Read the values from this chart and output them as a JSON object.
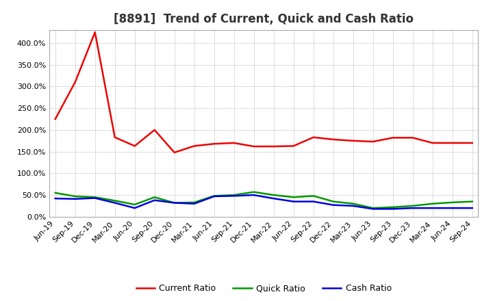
{
  "title": "[8891]  Trend of Current, Quick and Cash Ratio",
  "x_labels": [
    "Jun-19",
    "Sep-19",
    "Dec-19",
    "Mar-20",
    "Jun-20",
    "Sep-20",
    "Dec-20",
    "Mar-21",
    "Jun-21",
    "Sep-21",
    "Dec-21",
    "Mar-22",
    "Jun-22",
    "Sep-22",
    "Dec-22",
    "Mar-23",
    "Jun-23",
    "Sep-23",
    "Dec-23",
    "Mar-24",
    "Jun-24",
    "Sep-24"
  ],
  "current_ratio": [
    225,
    310,
    425,
    183,
    163,
    200,
    148,
    163,
    168,
    170,
    162,
    162,
    163,
    183,
    178,
    175,
    173,
    182,
    182,
    170,
    170,
    170
  ],
  "quick_ratio": [
    55,
    47,
    45,
    37,
    28,
    45,
    32,
    33,
    48,
    50,
    57,
    50,
    45,
    48,
    35,
    30,
    20,
    22,
    25,
    30,
    33,
    35
  ],
  "cash_ratio": [
    42,
    41,
    43,
    32,
    20,
    38,
    32,
    30,
    47,
    48,
    50,
    42,
    35,
    35,
    27,
    25,
    18,
    18,
    20,
    20,
    20,
    20
  ],
  "current_color": "#EE0000",
  "quick_color": "#009900",
  "cash_color": "#0000DD",
  "ylim": [
    0,
    430
  ],
  "yticks": [
    0,
    50,
    100,
    150,
    200,
    250,
    300,
    350,
    400
  ],
  "background_color": "#FFFFFF",
  "grid_color": "#999999",
  "title_fontsize": 12,
  "tick_fontsize": 8,
  "legend_fontsize": 9
}
